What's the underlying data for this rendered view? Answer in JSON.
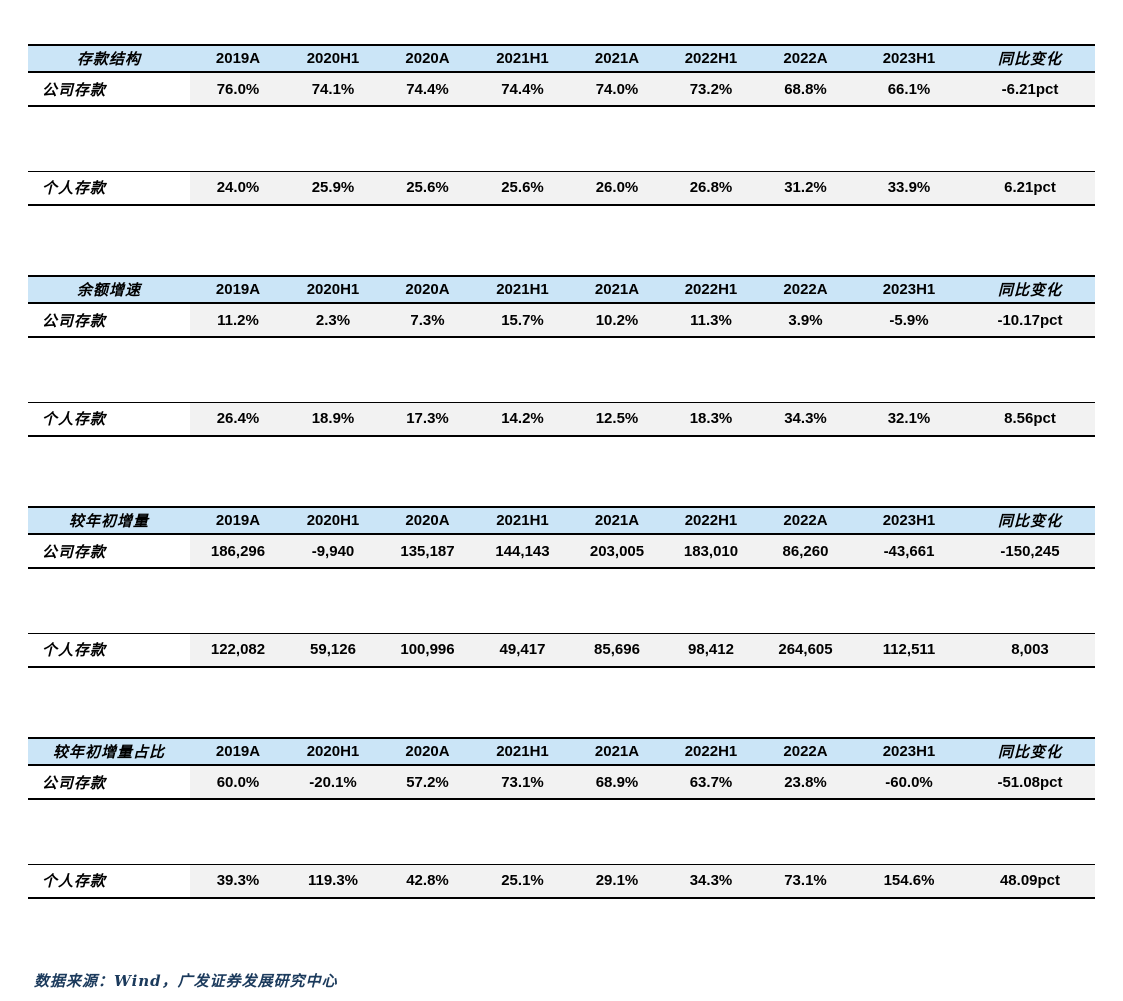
{
  "columns": [
    "2019A",
    "2020H1",
    "2020A",
    "2021H1",
    "2021A",
    "2022H1",
    "2022A",
    "2023H1",
    "同比变化"
  ],
  "tables": [
    {
      "title": "存款结构",
      "rows": [
        {
          "label": "公司存款",
          "values": [
            "76.0%",
            "74.1%",
            "74.4%",
            "74.4%",
            "74.0%",
            "73.2%",
            "68.8%",
            "66.1%",
            "-6.21pct"
          ]
        },
        {
          "label": "个人存款",
          "values": [
            "24.0%",
            "25.9%",
            "25.6%",
            "25.6%",
            "26.0%",
            "26.8%",
            "31.2%",
            "33.9%",
            "6.21pct"
          ]
        }
      ]
    },
    {
      "title": "余额增速",
      "rows": [
        {
          "label": "公司存款",
          "values": [
            "11.2%",
            "2.3%",
            "7.3%",
            "15.7%",
            "10.2%",
            "11.3%",
            "3.9%",
            "-5.9%",
            "-10.17pct"
          ]
        },
        {
          "label": "个人存款",
          "values": [
            "26.4%",
            "18.9%",
            "17.3%",
            "14.2%",
            "12.5%",
            "18.3%",
            "34.3%",
            "32.1%",
            "8.56pct"
          ]
        }
      ]
    },
    {
      "title": "较年初增量",
      "rows": [
        {
          "label": "公司存款",
          "values": [
            "186,296",
            "-9,940",
            "135,187",
            "144,143",
            "203,005",
            "183,010",
            "86,260",
            "-43,661",
            "-150,245"
          ]
        },
        {
          "label": "个人存款",
          "values": [
            "122,082",
            "59,126",
            "100,996",
            "49,417",
            "85,696",
            "98,412",
            "264,605",
            "112,511",
            "8,003"
          ]
        }
      ]
    },
    {
      "title": "较年初增量占比",
      "rows": [
        {
          "label": "公司存款",
          "values": [
            "60.0%",
            "-20.1%",
            "57.2%",
            "73.1%",
            "68.9%",
            "63.7%",
            "23.8%",
            "-60.0%",
            "-51.08pct"
          ]
        },
        {
          "label": "个人存款",
          "values": [
            "39.3%",
            "119.3%",
            "42.8%",
            "25.1%",
            "29.1%",
            "34.3%",
            "73.1%",
            "154.6%",
            "48.09pct"
          ]
        }
      ]
    }
  ],
  "footer": {
    "text": "数据来源：Wind，广发证券发展研究中心"
  },
  "colors": {
    "header_bg": "#cbe5f7",
    "row_bg": "#f2f2f2",
    "border": "#000000",
    "footer_text": "#1b3a5c"
  }
}
